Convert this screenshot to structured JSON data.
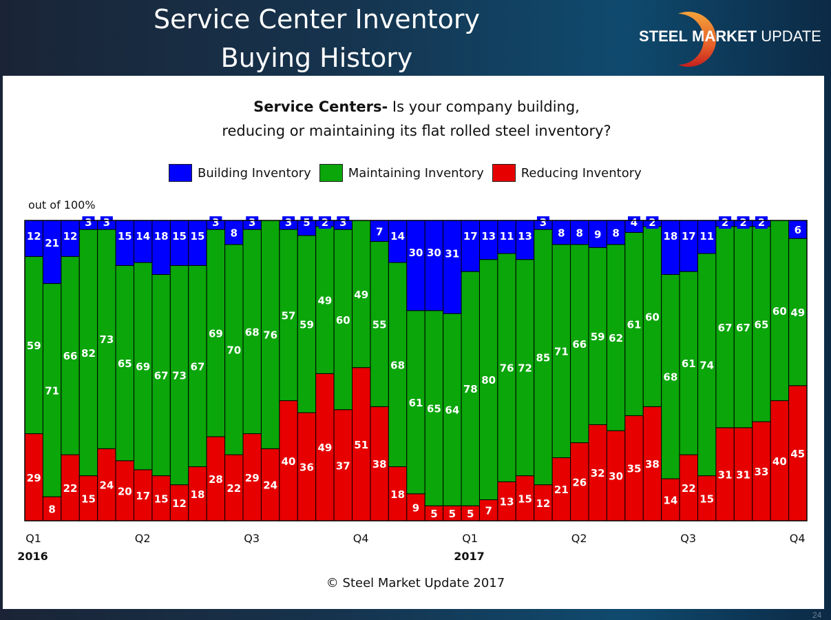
{
  "header": {
    "title_line1": "Service Center Inventory",
    "title_line2": "Buying History",
    "logo_bold": "STEEL",
    "logo_regular1": " MARKET",
    "logo_regular2": " UPDATE"
  },
  "question": {
    "bold": "Service Centers-",
    "line1_rest": " Is your company building,",
    "line2": "reducing or maintaining its flat rolled steel inventory?"
  },
  "footer": {
    "copyright": "© Steel Market Update 2017",
    "page_number": "24"
  },
  "colors": {
    "building": "#0000FF",
    "maintaining": "#0AA60A",
    "reducing": "#E60000"
  },
  "chart_data": {
    "type": "bar",
    "stacked": true,
    "title": "Service Centers- Is your company building, reducing or maintaining its flat rolled steel inventory?",
    "ylabel": "out of 100%",
    "ylim": [
      0,
      100
    ],
    "grid": false,
    "legend_position": "top-center",
    "legend": [
      "Building Inventory",
      "Maintaining Inventory",
      "Reducing Inventory"
    ],
    "quarter_ticks": [
      {
        "label": "Q1",
        "bar_index": 0,
        "year": "2016"
      },
      {
        "label": "Q2",
        "bar_index": 6
      },
      {
        "label": "Q3",
        "bar_index": 12
      },
      {
        "label": "Q4",
        "bar_index": 18
      },
      {
        "label": "Q1",
        "bar_index": 24,
        "year": "2017"
      },
      {
        "label": "Q2",
        "bar_index": 30
      },
      {
        "label": "Q3",
        "bar_index": 36
      },
      {
        "label": "Q4",
        "bar_index": 42
      }
    ],
    "series": [
      {
        "name": "Building Inventory",
        "values": [
          12,
          21,
          12,
          3,
          3,
          15,
          14,
          18,
          15,
          15,
          3,
          8,
          3,
          0,
          3,
          5,
          2,
          3,
          0,
          7,
          14,
          30,
          30,
          31,
          17,
          13,
          11,
          13,
          3,
          8,
          8,
          9,
          8,
          4,
          2,
          18,
          17,
          11,
          2,
          2,
          2,
          0,
          6
        ]
      },
      {
        "name": "Maintaining Inventory",
        "values": [
          59,
          71,
          66,
          82,
          73,
          65,
          69,
          67,
          73,
          67,
          69,
          70,
          68,
          76,
          57,
          59,
          49,
          60,
          49,
          55,
          68,
          61,
          65,
          64,
          78,
          80,
          76,
          72,
          85,
          71,
          66,
          59,
          62,
          61,
          60,
          68,
          61,
          74,
          67,
          67,
          65,
          60,
          49
        ]
      },
      {
        "name": "Reducing Inventory",
        "values": [
          29,
          8,
          22,
          15,
          24,
          20,
          17,
          15,
          12,
          18,
          28,
          22,
          29,
          24,
          40,
          36,
          49,
          37,
          51,
          38,
          18,
          9,
          5,
          5,
          5,
          7,
          13,
          15,
          12,
          21,
          26,
          32,
          30,
          35,
          38,
          14,
          22,
          15,
          31,
          31,
          33,
          40,
          45
        ]
      }
    ]
  }
}
